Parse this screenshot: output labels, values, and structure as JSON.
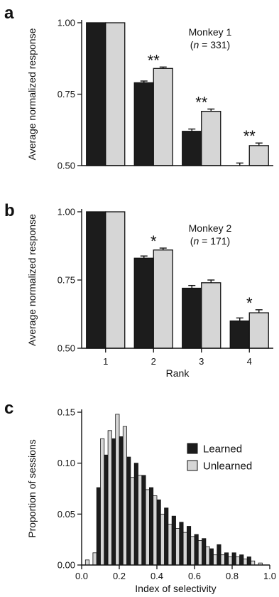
{
  "colors": {
    "learned": "#1c1c1c",
    "unlearned": "#d6d6d6",
    "stroke": "#111111"
  },
  "panels": {
    "a": {
      "letter": "a",
      "annotation": [
        "Monkey 1",
        "(n = 331)"
      ],
      "annotation_italic": "n",
      "annotation_rest": " = 331)"
    },
    "b": {
      "letter": "b",
      "annotation": [
        "Monkey 2",
        "(n = 171)"
      ],
      "annotation_italic": "n",
      "annotation_rest": " = 171)"
    },
    "c": {
      "letter": "c"
    }
  },
  "chart_data": [
    {
      "panel": "a",
      "type": "bar",
      "ylabel": "Average normalized response",
      "xlabel": "",
      "ylim": [
        0.5,
        1.0
      ],
      "yticks": [
        "0.50",
        "0.75",
        "1.00"
      ],
      "categories": [
        "1",
        "2",
        "3",
        "4"
      ],
      "show_xticks": false,
      "series": [
        {
          "key": "learned",
          "values": [
            1.0,
            0.79,
            0.62,
            0.5
          ],
          "errors": [
            0,
            0.006,
            0.008,
            0.009
          ]
        },
        {
          "key": "unlearned",
          "values": [
            1.0,
            0.84,
            0.69,
            0.57
          ],
          "errors": [
            0,
            0.005,
            0.008,
            0.009
          ]
        }
      ],
      "significance": [
        "",
        "**",
        "**",
        "**"
      ]
    },
    {
      "panel": "b",
      "type": "bar",
      "ylabel": "Average normalized response",
      "xlabel": "Rank",
      "ylim": [
        0.5,
        1.0
      ],
      "yticks": [
        "0.50",
        "0.75",
        "1.00"
      ],
      "categories": [
        "1",
        "2",
        "3",
        "4"
      ],
      "show_xticks": true,
      "series": [
        {
          "key": "learned",
          "values": [
            1.0,
            0.83,
            0.72,
            0.6
          ],
          "errors": [
            0,
            0.008,
            0.01,
            0.011
          ]
        },
        {
          "key": "unlearned",
          "values": [
            1.0,
            0.86,
            0.74,
            0.63
          ],
          "errors": [
            0,
            0.007,
            0.01,
            0.011
          ]
        }
      ],
      "significance": [
        "",
        "*",
        "",
        "*"
      ]
    },
    {
      "panel": "c",
      "type": "bar",
      "ylabel": "Proportion of sessions",
      "xlabel": "Index of selectivity",
      "xlim": [
        0.0,
        1.0
      ],
      "ylim": [
        0.0,
        0.15
      ],
      "xticks": [
        "0.0",
        "0.2",
        "0.4",
        "0.6",
        "0.8",
        "1.0"
      ],
      "yticks": [
        "0.00",
        "0.05",
        "0.10",
        "0.15"
      ],
      "bin_width": 0.04,
      "x": [
        0.02,
        0.06,
        0.1,
        0.14,
        0.18,
        0.22,
        0.26,
        0.3,
        0.34,
        0.38,
        0.42,
        0.46,
        0.5,
        0.54,
        0.58,
        0.62,
        0.66,
        0.7,
        0.74,
        0.78,
        0.82,
        0.86,
        0.9,
        0.94
      ],
      "series": [
        {
          "name": "Learned",
          "key": "learned",
          "values": [
            0.0,
            0.0,
            0.076,
            0.108,
            0.124,
            0.126,
            0.106,
            0.1,
            0.088,
            0.076,
            0.064,
            0.056,
            0.048,
            0.042,
            0.038,
            0.03,
            0.026,
            0.016,
            0.02,
            0.012,
            0.012,
            0.01,
            0.008,
            0.0
          ]
        },
        {
          "name": "Unlearned",
          "key": "unlearned",
          "values": [
            0.005,
            0.012,
            0.124,
            0.132,
            0.148,
            0.136,
            0.086,
            0.088,
            0.074,
            0.068,
            0.05,
            0.04,
            0.036,
            0.032,
            0.028,
            0.024,
            0.018,
            0.01,
            0.01,
            0.008,
            0.008,
            0.006,
            0.004,
            0.002
          ]
        }
      ],
      "legend_position": "top-right"
    }
  ]
}
